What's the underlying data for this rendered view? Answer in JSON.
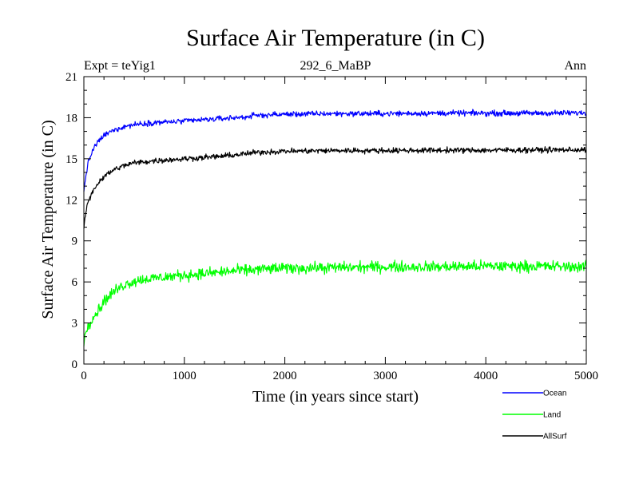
{
  "chart_data": {
    "type": "line",
    "title": "Surface Air Temperature (in C)",
    "subtitle_left": "Expt = teYig1",
    "subtitle_center": "292_6_MaBP",
    "subtitle_right": "Ann",
    "xlabel": "Time (in years since start)",
    "ylabel": "Surface Air Temperature (in C)",
    "xlim": [
      0,
      5000
    ],
    "ylim": [
      0,
      21
    ],
    "xticks": [
      0,
      1000,
      2000,
      3000,
      4000,
      5000
    ],
    "yticks": [
      0,
      3,
      6,
      9,
      12,
      15,
      18,
      21
    ],
    "legend_position": "bottom-right, below plot",
    "series": [
      {
        "name": "Ocean",
        "color": "#0000ff",
        "noise": 0.1,
        "points": [
          [
            0,
            12.6
          ],
          [
            20,
            13.8
          ],
          [
            50,
            14.9
          ],
          [
            100,
            15.8
          ],
          [
            150,
            16.3
          ],
          [
            200,
            16.7
          ],
          [
            300,
            17.1
          ],
          [
            400,
            17.35
          ],
          [
            500,
            17.5
          ],
          [
            700,
            17.65
          ],
          [
            900,
            17.7
          ],
          [
            1000,
            17.75
          ],
          [
            1200,
            17.85
          ],
          [
            1400,
            17.95
          ],
          [
            1600,
            18.05
          ],
          [
            1700,
            18.15
          ],
          [
            1800,
            18.2
          ],
          [
            2000,
            18.25
          ],
          [
            2500,
            18.3
          ],
          [
            3000,
            18.3
          ],
          [
            3500,
            18.33
          ],
          [
            4000,
            18.33
          ],
          [
            4500,
            18.33
          ],
          [
            5000,
            18.35
          ]
        ]
      },
      {
        "name": "Land",
        "color": "#00ff00",
        "noise": 0.2,
        "points": [
          [
            0,
            1.3
          ],
          [
            10,
            2.0
          ],
          [
            30,
            2.6
          ],
          [
            60,
            3.1
          ],
          [
            100,
            3.5
          ],
          [
            150,
            4.0
          ],
          [
            200,
            4.6
          ],
          [
            300,
            5.3
          ],
          [
            400,
            5.8
          ],
          [
            500,
            6.05
          ],
          [
            600,
            6.2
          ],
          [
            800,
            6.35
          ],
          [
            1000,
            6.5
          ],
          [
            1200,
            6.6
          ],
          [
            1400,
            6.75
          ],
          [
            1600,
            6.85
          ],
          [
            1800,
            6.95
          ],
          [
            2000,
            7.0
          ],
          [
            2500,
            7.05
          ],
          [
            3000,
            7.1
          ],
          [
            3500,
            7.1
          ],
          [
            4000,
            7.15
          ],
          [
            4500,
            7.15
          ],
          [
            5000,
            7.1
          ]
        ]
      },
      {
        "name": "AllSurf",
        "color": "#000000",
        "noise": 0.1,
        "points": [
          [
            0,
            9.9
          ],
          [
            10,
            10.6
          ],
          [
            30,
            11.5
          ],
          [
            60,
            12.2
          ],
          [
            100,
            12.8
          ],
          [
            150,
            13.3
          ],
          [
            200,
            13.7
          ],
          [
            300,
            14.2
          ],
          [
            400,
            14.5
          ],
          [
            500,
            14.7
          ],
          [
            700,
            14.85
          ],
          [
            900,
            14.95
          ],
          [
            1000,
            15.0
          ],
          [
            1200,
            15.1
          ],
          [
            1400,
            15.2
          ],
          [
            1600,
            15.35
          ],
          [
            1700,
            15.45
          ],
          [
            1800,
            15.5
          ],
          [
            2000,
            15.55
          ],
          [
            2500,
            15.6
          ],
          [
            3000,
            15.6
          ],
          [
            3500,
            15.62
          ],
          [
            4000,
            15.62
          ],
          [
            4500,
            15.65
          ],
          [
            5000,
            15.65
          ]
        ]
      }
    ]
  }
}
